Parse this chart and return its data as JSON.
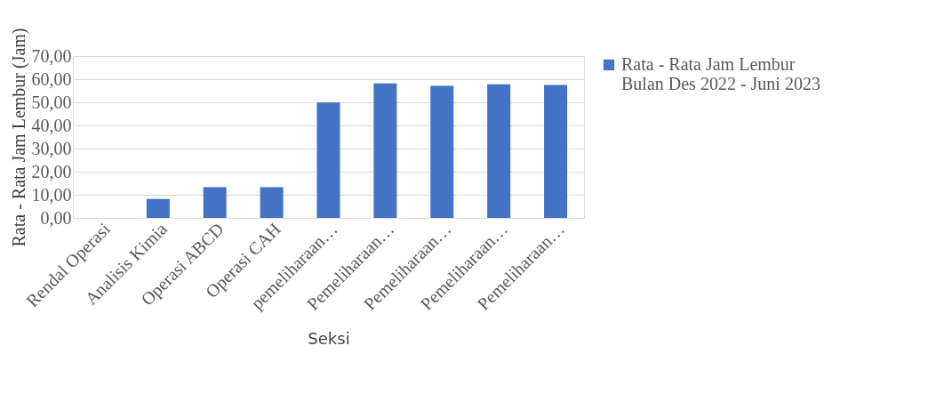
{
  "chart_data": {
    "type": "bar",
    "xlabel": "Seksi",
    "ylabel": "Rata - Rata Jam Lembur (Jam)",
    "categories": [
      "Rendal Operasi",
      "Analisis Kimia",
      "Operasi ABCD",
      "Operasi CAH",
      "pemeliharaan…",
      "Pemeliharaan…",
      "Pemeliharaan…",
      "Pemeliharaan…",
      "Pemeliharaan…"
    ],
    "series": [
      {
        "name": "Rata - Rata Jam Lembur Bulan Des 2022 - Juni 2023",
        "color": "#4472c4",
        "values": [
          0,
          8.2,
          13.3,
          13.3,
          49.9,
          58.2,
          57.1,
          57.8,
          57.5
        ]
      }
    ],
    "ylim": [
      0,
      70
    ],
    "yticks": [
      {
        "value": 0,
        "label": "0,00"
      },
      {
        "value": 10,
        "label": "10,00"
      },
      {
        "value": 20,
        "label": "20,00"
      },
      {
        "value": 30,
        "label": "30,00"
      },
      {
        "value": 40,
        "label": "40,00"
      },
      {
        "value": 50,
        "label": "50,00"
      },
      {
        "value": 60,
        "label": "60,00"
      },
      {
        "value": 70,
        "label": "70,00"
      }
    ],
    "grid": "y",
    "legend": "right"
  }
}
